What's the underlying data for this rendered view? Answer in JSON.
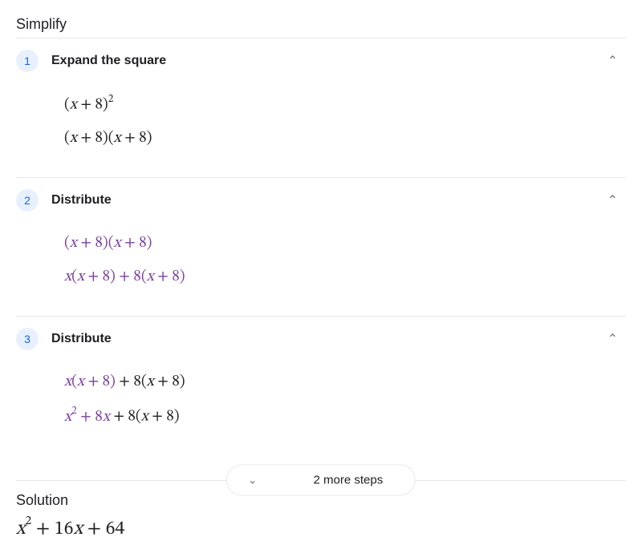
{
  "title": "Simplify",
  "steps": [
    {
      "num": "1",
      "label": "Expand the square",
      "lines": [
        {
          "html": "<span class='n'>(</span>x <span class='n'>+ 8)</span><sup>2</sup>"
        },
        {
          "html": "<span class='n'>(</span>x <span class='n'>+ 8)(</span>x <span class='n'>+ 8)</span>"
        }
      ]
    },
    {
      "num": "2",
      "label": "Distribute",
      "lines": [
        {
          "html": "<span class='purple'><span class='n'>(</span>x <span class='n'>+ 8)(</span>x <span class='n'>+ 8)</span></span>"
        },
        {
          "html": "<span class='purple'>x<span class='n'>(</span>x <span class='n'>+ 8) + 8(</span>x <span class='n'>+ 8)</span></span>"
        }
      ]
    },
    {
      "num": "3",
      "label": "Distribute",
      "lines": [
        {
          "html": "<span class='purple'>x<span class='n'>(</span>x <span class='n'>+ 8)</span></span> <span class='n'>+ 8(</span>x <span class='n'>+ 8)</span>"
        },
        {
          "html": "<span class='purple'>x<sup>2</sup> <span class='n'>+ 8</span>x</span> <span class='n'>+ 8(</span>x <span class='n'>+ 8)</span>"
        }
      ]
    }
  ],
  "more_steps_label": "2 more steps",
  "solution_label": "Solution",
  "solution_html": "x<sup>2</sup> <span class='n'>+ 16</span>x <span class='n'>+ 64</span>",
  "colors": {
    "badge_bg": "#e8f0fe",
    "badge_fg": "#1967d2",
    "divider": "#e8e8e8",
    "highlight": "#7b3fa0",
    "text": "#202124",
    "muted": "#70757a"
  }
}
